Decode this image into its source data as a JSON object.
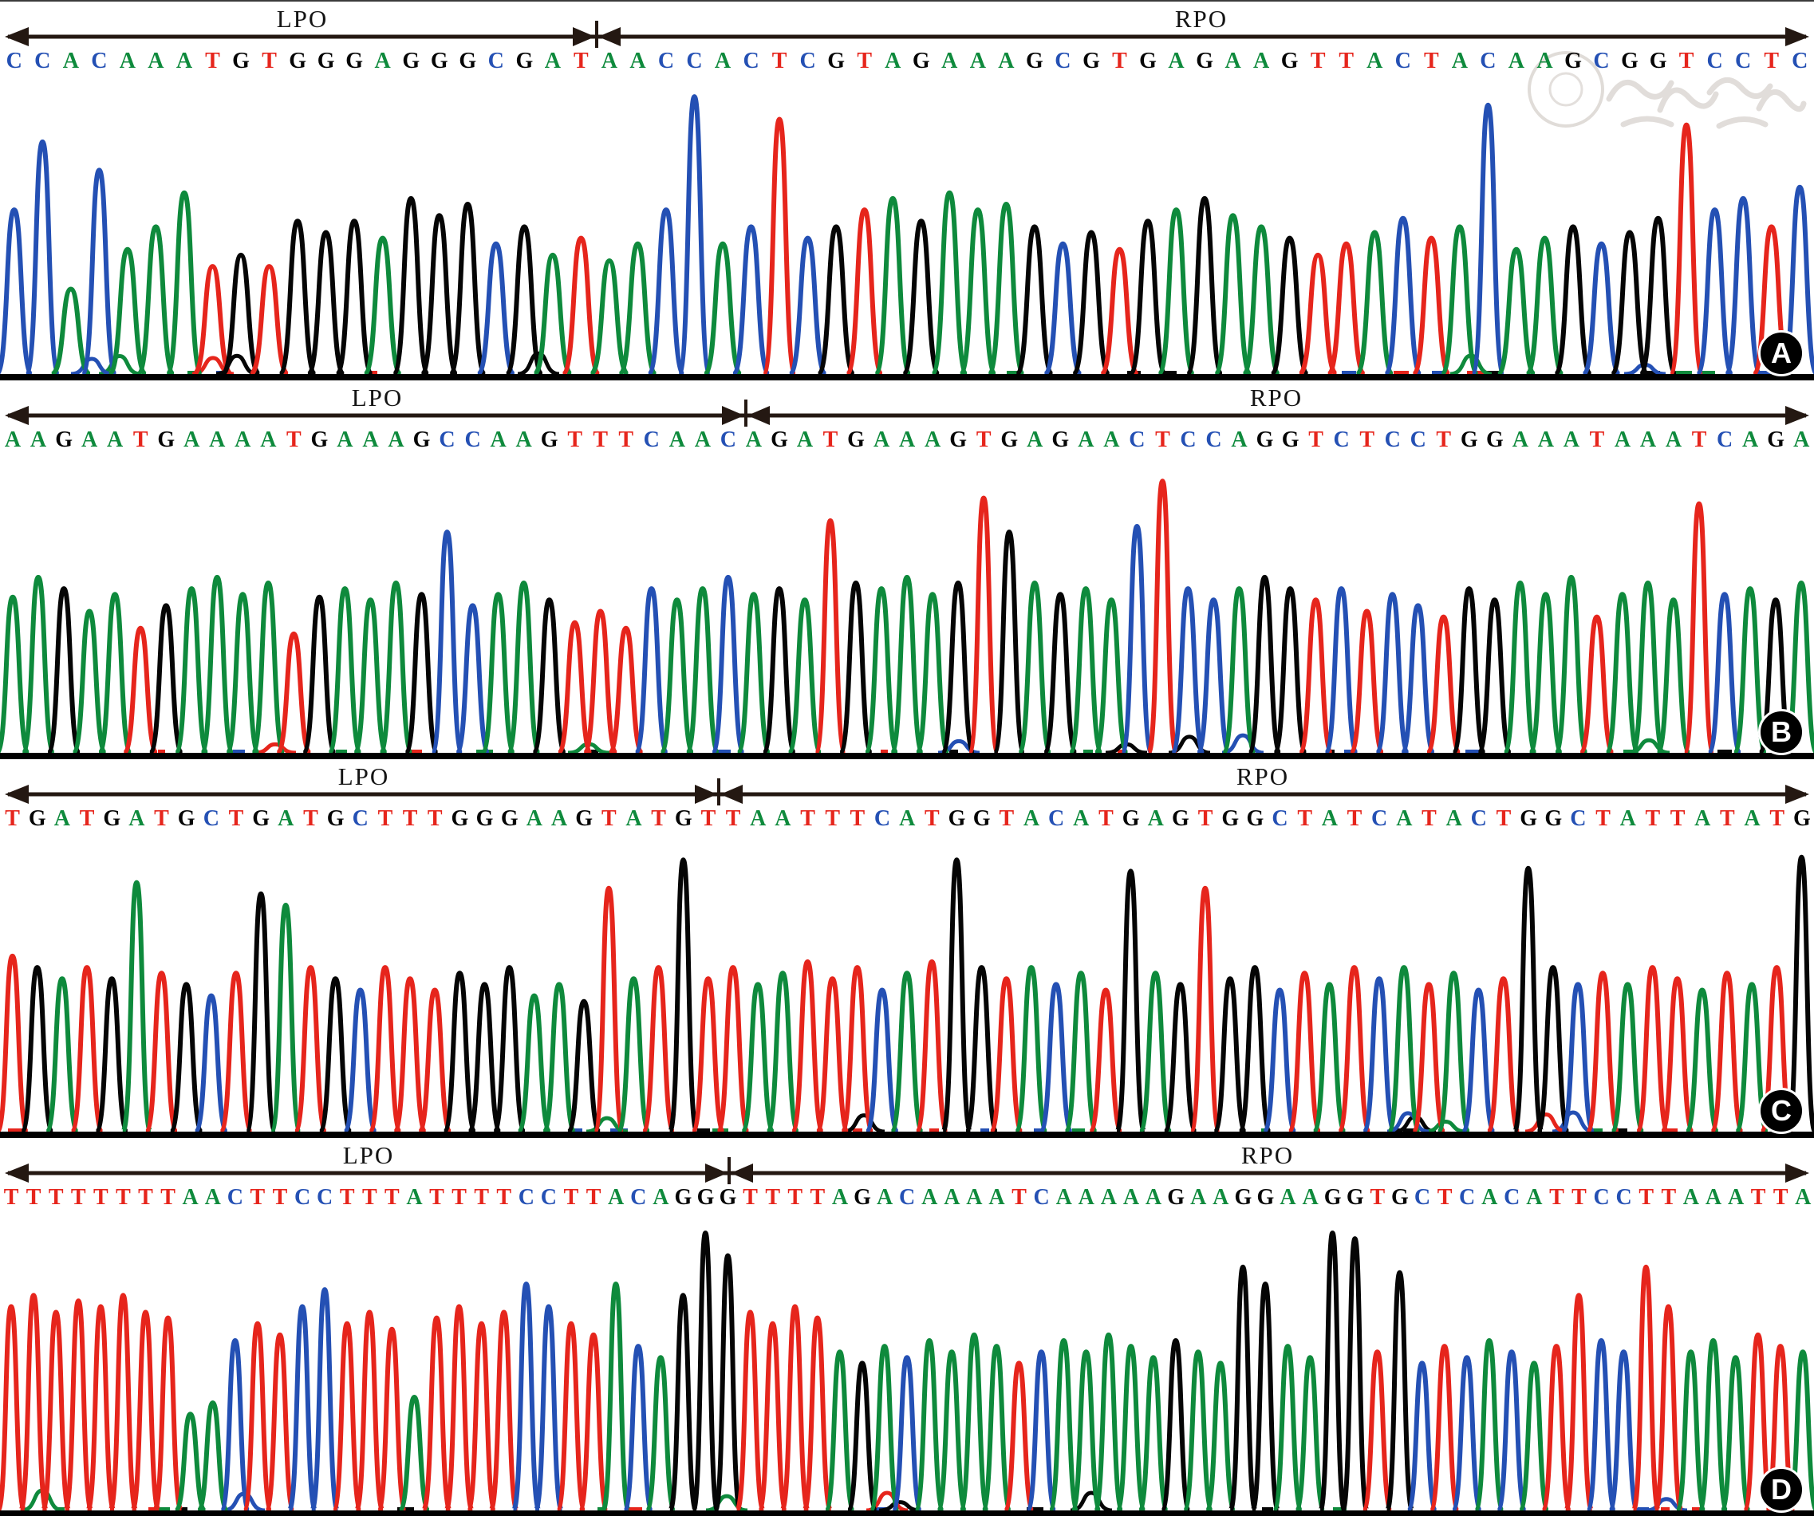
{
  "figure": {
    "type": "sanger-sequencing-chromatogram",
    "base_colors": {
      "A": "#0e8a3c",
      "C": "#2450b4",
      "G": "#050505",
      "T": "#e6251c"
    },
    "arrow_color": "#241812",
    "baseline_color": "#000000",
    "badge_bg_color": "#000000",
    "badge_text_color": "#ffffff",
    "watermark_note": "faint gray circular seal with calligraphy, top right of panel A"
  },
  "chart_data": [
    {
      "type": "line",
      "panel_label": "A",
      "primer_left": "LPO",
      "primer_right": "RPO",
      "junction_frac": 0.329,
      "sequence": "CCACAAATGTGGGAGGGCGATAACCACTCGTAGAAAGCGTGAGAAGTTACTACAAGCGGTCCTC",
      "peak_heights": [
        58,
        82,
        30,
        72,
        44,
        52,
        64,
        38,
        42,
        38,
        54,
        50,
        54,
        48,
        62,
        56,
        60,
        46,
        52,
        42,
        48,
        40,
        46,
        58,
        98,
        46,
        52,
        90,
        48,
        52,
        58,
        62,
        54,
        64,
        58,
        60,
        52,
        46,
        50,
        44,
        54,
        58,
        62,
        56,
        52,
        48,
        42,
        46,
        50,
        55,
        48,
        52,
        95,
        44,
        48,
        52,
        46,
        50,
        55,
        88,
        58,
        62,
        52,
        66
      ],
      "watermark": true
    },
    {
      "type": "line",
      "panel_label": "B",
      "primer_left": "LPO",
      "primer_right": "RPO",
      "junction_frac": 0.411,
      "sequence": "AAGAATGAAAATGAAAGCCAAGTTTCAACAGATGAAAGTGAGAACTCCAGGTCTCCTGGAAATAAATCAGA",
      "peak_heights": [
        55,
        62,
        58,
        50,
        56,
        44,
        52,
        58,
        62,
        56,
        60,
        42,
        55,
        58,
        54,
        60,
        56,
        78,
        52,
        56,
        60,
        54,
        46,
        50,
        44,
        58,
        54,
        58,
        62,
        56,
        58,
        54,
        82,
        60,
        58,
        62,
        56,
        60,
        90,
        78,
        60,
        56,
        58,
        54,
        80,
        96,
        58,
        54,
        58,
        62,
        58,
        54,
        58,
        50,
        56,
        52,
        48,
        58,
        54,
        60,
        56,
        62,
        48,
        56,
        60,
        54,
        88,
        56,
        58,
        54,
        60
      ],
      "watermark": false
    },
    {
      "type": "line",
      "panel_label": "C",
      "primer_left": "LPO",
      "primer_right": "RPO",
      "junction_frac": 0.396,
      "sequence": "TGATGATGCTGATGCTTTGGGAAGTATGTTAATTTCATGGTACATGAGTGGCTATCATACTGGCTATTATATG",
      "peak_heights": [
        62,
        58,
        54,
        58,
        54,
        88,
        56,
        52,
        48,
        56,
        84,
        80,
        58,
        54,
        50,
        58,
        54,
        50,
        56,
        52,
        58,
        48,
        52,
        46,
        86,
        54,
        58,
        96,
        54,
        58,
        52,
        56,
        60,
        54,
        58,
        50,
        56,
        60,
        96,
        58,
        54,
        58,
        52,
        56,
        50,
        92,
        56,
        52,
        86,
        54,
        58,
        50,
        56,
        52,
        58,
        54,
        58,
        52,
        56,
        50,
        54,
        93,
        58,
        52,
        56,
        52,
        58,
        54,
        50,
        56,
        52,
        58,
        97
      ],
      "watermark": false
    },
    {
      "type": "line",
      "panel_label": "D",
      "primer_left": "LPO",
      "primer_right": "RPO",
      "junction_frac": 0.402,
      "sequence": "TTTTTTTTAACTTCCTTTATTTTCCTTACAGGGTTTTAGACAAAATCAAAAAGAAGGAAGGTGCTCACATTCCTTAAATTA",
      "peak_heights": [
        72,
        76,
        70,
        74,
        72,
        76,
        70,
        68,
        34,
        38,
        60,
        66,
        62,
        72,
        78,
        66,
        70,
        64,
        40,
        68,
        72,
        66,
        70,
        80,
        72,
        66,
        62,
        80,
        58,
        54,
        76,
        98,
        90,
        70,
        66,
        72,
        68,
        56,
        52,
        58,
        54,
        60,
        56,
        62,
        58,
        52,
        56,
        60,
        56,
        62,
        58,
        54,
        60,
        56,
        52,
        86,
        80,
        58,
        54,
        98,
        96,
        56,
        84,
        52,
        58,
        54,
        60,
        56,
        52,
        58,
        76,
        60,
        56,
        86,
        72,
        56,
        60,
        54,
        62,
        58,
        56
      ],
      "watermark": false
    }
  ]
}
